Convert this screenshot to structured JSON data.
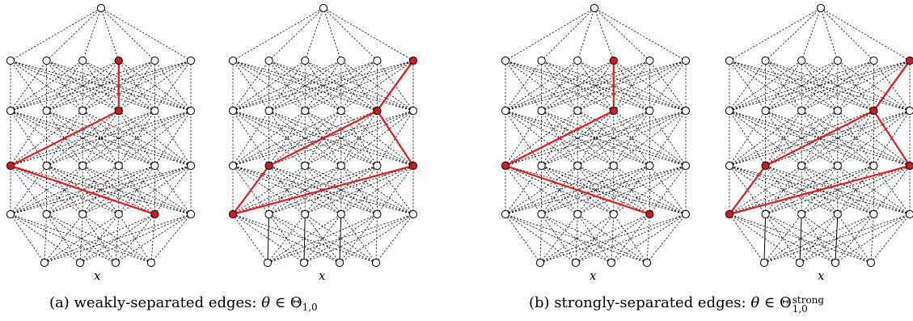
{
  "captions": {
    "a": {
      "label": "(a) weakly-separated edges:",
      "theta": "θ",
      "in": "∈",
      "set": "Θ",
      "sub": "1,0",
      "sup": ""
    },
    "b": {
      "label": "(b) strongly-separated edges:",
      "theta": "θ",
      "in": "∈",
      "set": "Θ",
      "sub": "1,0",
      "sup": "strong"
    }
  },
  "input_label": "x",
  "network": {
    "input_units": 4,
    "hidden_units_per_layer": 6,
    "hidden_layers": 4,
    "output_units": 1
  },
  "colors": {
    "path": "#e41a1c",
    "active_node": "#d7191c",
    "node": "#ffffff",
    "edge": "#000000"
  },
  "networks": [
    {
      "id": "a-left",
      "layer_widths": [
        4,
        6,
        6,
        6,
        6,
        1
      ],
      "solid_input_edges": [],
      "path": [
        [
          1,
          4
        ],
        [
          2,
          0
        ],
        [
          3,
          3
        ],
        [
          4,
          3
        ]
      ],
      "active_nodes": [
        [
          1,
          4
        ],
        [
          2,
          0
        ],
        [
          3,
          3
        ],
        [
          4,
          3
        ]
      ]
    },
    {
      "id": "a-right",
      "layer_widths": [
        4,
        6,
        6,
        6,
        6,
        1
      ],
      "solid_input_edges": [
        [
          0,
          1
        ],
        [
          1,
          2
        ],
        [
          2,
          3
        ]
      ],
      "path": [
        [
          1,
          0
        ],
        [
          2,
          5
        ],
        [
          3,
          4
        ],
        [
          4,
          5
        ],
        [
          3,
          4
        ],
        [
          2,
          1
        ],
        [
          1,
          0
        ]
      ],
      "active_nodes": [
        [
          1,
          0
        ],
        [
          2,
          5
        ],
        [
          3,
          4
        ],
        [
          4,
          5
        ],
        [
          2,
          1
        ]
      ]
    },
    {
      "id": "b-left",
      "layer_widths": [
        4,
        6,
        6,
        6,
        6,
        1
      ],
      "solid_input_edges": [],
      "path": [
        [
          1,
          4
        ],
        [
          2,
          0
        ],
        [
          3,
          3
        ],
        [
          4,
          3
        ]
      ],
      "active_nodes": [
        [
          1,
          4
        ],
        [
          2,
          0
        ],
        [
          3,
          3
        ],
        [
          4,
          3
        ]
      ]
    },
    {
      "id": "b-right",
      "layer_widths": [
        4,
        6,
        6,
        6,
        6,
        1
      ],
      "solid_input_edges": [
        [
          0,
          1
        ],
        [
          1,
          2
        ],
        [
          2,
          3
        ]
      ],
      "path": [
        [
          1,
          0
        ],
        [
          2,
          5
        ],
        [
          3,
          4
        ],
        [
          4,
          5
        ],
        [
          3,
          4
        ],
        [
          2,
          1
        ],
        [
          1,
          0
        ]
      ],
      "active_nodes": [
        [
          1,
          0
        ],
        [
          2,
          5
        ],
        [
          3,
          4
        ],
        [
          4,
          5
        ],
        [
          2,
          1
        ]
      ]
    }
  ]
}
